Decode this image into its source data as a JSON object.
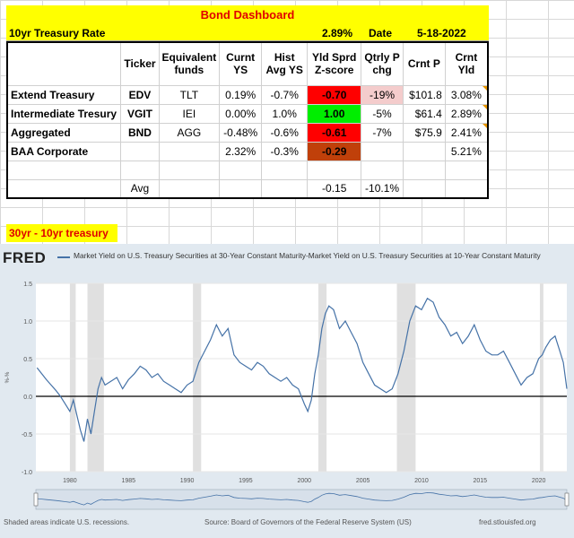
{
  "dashboard": {
    "title": "Bond Dashboard",
    "rate_label": "10yr Treasury Rate",
    "rate_value": "2.89%",
    "date_label": "Date",
    "date_value": "5-18-2022",
    "headers": [
      "Ticker",
      "Equivalent funds",
      "Curnt YS",
      "Hist Avg YS",
      "Yld Sprd Z-score",
      "Qtrly P chg",
      "Crnt P",
      "Crnt Yld"
    ],
    "rows": [
      {
        "name": "Extend Treasury",
        "ticker": "EDV",
        "equiv": "TLT",
        "curnt_ys": "0.19%",
        "hist_ys": "-0.7%",
        "zscore": "-0.70",
        "qchg": "-19%",
        "price": "$101.8",
        "yld": "3.08%"
      },
      {
        "name": "Intermediate Tresury",
        "ticker": "VGIT",
        "equiv": "IEI",
        "curnt_ys": "0.00%",
        "hist_ys": "1.0%",
        "zscore": "1.00",
        "qchg": "-5%",
        "price": "$61.4",
        "yld": "2.89%"
      },
      {
        "name": "Aggregated",
        "ticker": "BND",
        "equiv": "AGG",
        "curnt_ys": "-0.48%",
        "hist_ys": "-0.6%",
        "zscore": "-0.61",
        "qchg": "-7%",
        "price": "$75.9",
        "yld": "2.41%"
      },
      {
        "name": "BAA Corporate",
        "ticker": "",
        "equiv": "",
        "curnt_ys": "2.32%",
        "hist_ys": "-0.3%",
        "zscore": "-0.29",
        "qchg": "",
        "price": "",
        "yld": "5.21%"
      }
    ],
    "avg_label": "Avg",
    "avg_zscore": "-0.15",
    "avg_qchg": "-10.1%",
    "colors": {
      "yellow": "#ffff00",
      "title_red": "#e00000",
      "z_red": "#ff0000",
      "z_green": "#00ee00",
      "z_brown": "#c0400a",
      "qchg_pink": "#f4cccc"
    }
  },
  "section_label": "30yr - 10yr treasury",
  "fred": {
    "logo": "FRED",
    "series_title": "Market Yield on U.S. Treasury Securities at 30-Year Constant Maturity-Market Yield on U.S. Treasury Securities at 10-Year Constant Maturity",
    "footer_left": "Shaded areas indicate U.S. recessions.",
    "footer_center": "Source: Board of Governors of the Federal Reserve System (US)",
    "footer_right": "fred.stlouisfed.org"
  },
  "chart_data": {
    "type": "line",
    "ylabel": "%-%",
    "ylim": [
      -1.0,
      1.5
    ],
    "yticks": [
      "-1.0",
      "-0.5",
      "0.0",
      "0.5",
      "1.0",
      "1.5"
    ],
    "xticks": [
      "1980",
      "1985",
      "1990",
      "1995",
      "2000",
      "2005",
      "2010",
      "2015",
      "2020"
    ],
    "xlim": [
      1977.1,
      2022.4
    ],
    "recessions": [
      [
        1980.0,
        1980.5
      ],
      [
        1981.5,
        1982.9
      ],
      [
        1990.5,
        1991.2
      ],
      [
        2001.2,
        2001.9
      ],
      [
        2007.9,
        2009.5
      ],
      [
        2020.1,
        2020.4
      ]
    ],
    "series": [
      {
        "color": "#4572a7",
        "x": [
          1977.2,
          1977.6,
          1978.0,
          1978.4,
          1978.8,
          1979.2,
          1979.6,
          1980.0,
          1980.3,
          1980.6,
          1980.9,
          1981.2,
          1981.5,
          1981.8,
          1982.1,
          1982.4,
          1982.7,
          1983.0,
          1983.5,
          1984.0,
          1984.5,
          1985.0,
          1985.5,
          1986.0,
          1986.5,
          1987.0,
          1987.5,
          1988.0,
          1988.5,
          1989.0,
          1989.5,
          1990.0,
          1990.5,
          1991.0,
          1991.5,
          1992.0,
          1992.5,
          1993.0,
          1993.5,
          1994.0,
          1994.5,
          1995.0,
          1995.5,
          1996.0,
          1996.5,
          1997.0,
          1997.5,
          1998.0,
          1998.5,
          1999.0,
          1999.5,
          2000.0,
          2000.3,
          2000.6,
          2000.9,
          2001.2,
          2001.5,
          2001.8,
          2002.1,
          2002.5,
          2003.0,
          2003.5,
          2004.0,
          2004.5,
          2005.0,
          2005.5,
          2006.0,
          2006.5,
          2007.0,
          2007.5,
          2008.0,
          2008.5,
          2009.0,
          2009.5,
          2010.0,
          2010.5,
          2011.0,
          2011.5,
          2012.0,
          2012.5,
          2013.0,
          2013.5,
          2014.0,
          2014.5,
          2015.0,
          2015.5,
          2016.0,
          2016.5,
          2017.0,
          2017.5,
          2018.0,
          2018.5,
          2019.0,
          2019.5,
          2020.0,
          2020.3,
          2020.6,
          2021.0,
          2021.4,
          2021.8,
          2022.1,
          2022.4
        ],
        "values": [
          0.38,
          0.3,
          0.22,
          0.15,
          0.08,
          0.0,
          -0.1,
          -0.2,
          -0.05,
          -0.25,
          -0.45,
          -0.6,
          -0.3,
          -0.5,
          -0.2,
          0.1,
          0.25,
          0.15,
          0.2,
          0.25,
          0.1,
          0.22,
          0.3,
          0.4,
          0.35,
          0.25,
          0.3,
          0.2,
          0.15,
          0.1,
          0.05,
          0.15,
          0.2,
          0.45,
          0.6,
          0.75,
          0.95,
          0.8,
          0.9,
          0.55,
          0.45,
          0.4,
          0.35,
          0.45,
          0.4,
          0.3,
          0.25,
          0.2,
          0.25,
          0.15,
          0.1,
          -0.1,
          -0.2,
          -0.05,
          0.3,
          0.55,
          0.9,
          1.1,
          1.2,
          1.15,
          0.9,
          1.0,
          0.85,
          0.7,
          0.45,
          0.3,
          0.15,
          0.1,
          0.05,
          0.1,
          0.3,
          0.6,
          1.0,
          1.2,
          1.15,
          1.3,
          1.25,
          1.05,
          0.95,
          0.8,
          0.85,
          0.7,
          0.8,
          0.95,
          0.75,
          0.6,
          0.55,
          0.55,
          0.6,
          0.45,
          0.3,
          0.15,
          0.25,
          0.3,
          0.5,
          0.55,
          0.65,
          0.75,
          0.8,
          0.6,
          0.45,
          0.1
        ]
      }
    ]
  }
}
